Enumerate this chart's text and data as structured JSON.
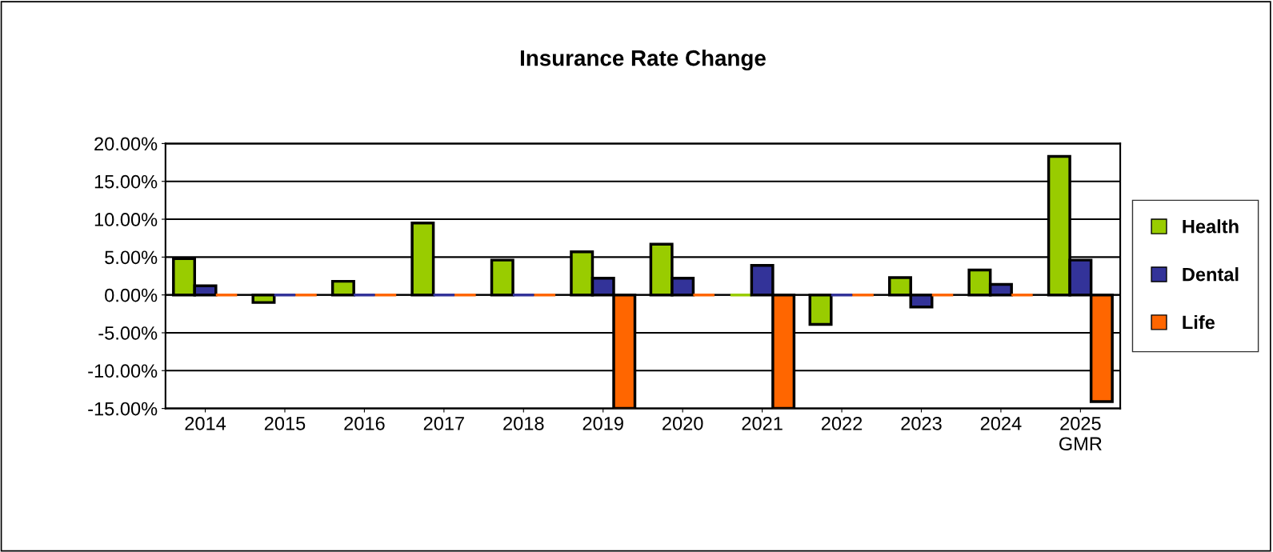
{
  "chart_data": {
    "type": "bar",
    "title": "Insurance Rate Change",
    "categories": [
      "2014",
      "2015",
      "2016",
      "2017",
      "2018",
      "2019",
      "2020",
      "2021",
      "2022",
      "2023",
      "2024",
      "2025\nGMR"
    ],
    "series": [
      {
        "name": "Health",
        "color": "#99cc00",
        "values": [
          4.8,
          -1.0,
          1.8,
          9.5,
          4.6,
          5.7,
          6.7,
          0,
          -3.9,
          2.3,
          3.3,
          18.3
        ]
      },
      {
        "name": "Dental",
        "color": "#333399",
        "values": [
          1.2,
          0,
          0,
          0,
          0,
          2.2,
          2.2,
          3.9,
          0,
          -1.6,
          1.4,
          4.6
        ]
      },
      {
        "name": "Life",
        "color": "#ff6600",
        "values": [
          0,
          0,
          0,
          0,
          0,
          -15,
          0,
          -15,
          0,
          0,
          0,
          -14.1
        ]
      }
    ],
    "ylim": [
      -15,
      20
    ],
    "yticks": [
      {
        "value": -15,
        "label": "-15.00%"
      },
      {
        "value": -10,
        "label": "-10.00%"
      },
      {
        "value": -5,
        "label": "-5.00%"
      },
      {
        "value": 0,
        "label": "0.00%"
      },
      {
        "value": 5,
        "label": "5.00%"
      },
      {
        "value": 10,
        "label": "10.00%"
      },
      {
        "value": 15,
        "label": "15.00%"
      },
      {
        "value": 20,
        "label": "20.00%"
      }
    ],
    "grid": "y",
    "legend": "right"
  }
}
